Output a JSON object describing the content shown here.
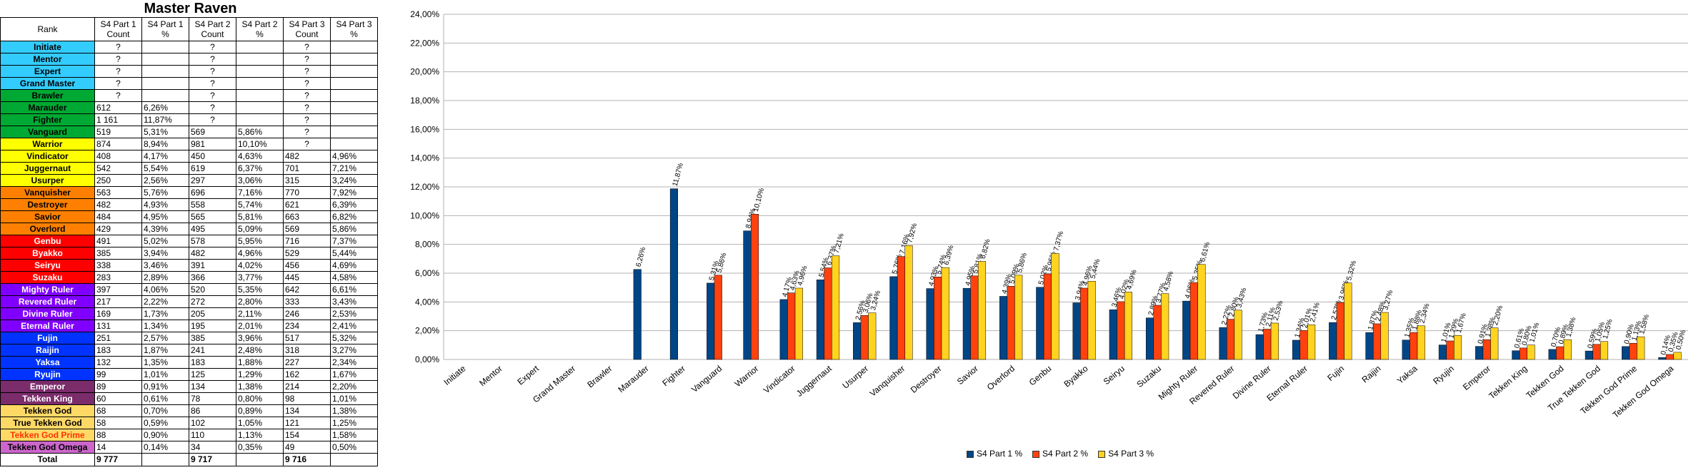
{
  "sheet": {
    "title": "Master Raven",
    "headers": [
      "Rank",
      "S4 Part 1 Count",
      "S4 Part 1 %",
      "S4 Part 2 Count",
      "S4 Part 2 %",
      "S4 Part 3 Count",
      "S4 Part 3 %"
    ],
    "rows": [
      {
        "rank": "Initiate",
        "bg": "#33ccff",
        "fg": "#000000",
        "c1": "?",
        "p1": "",
        "c2": "?",
        "p2": "",
        "c3": "?",
        "p3": ""
      },
      {
        "rank": "Mentor",
        "bg": "#33ccff",
        "fg": "#000000",
        "c1": "?",
        "p1": "",
        "c2": "?",
        "p2": "",
        "c3": "?",
        "p3": ""
      },
      {
        "rank": "Expert",
        "bg": "#33ccff",
        "fg": "#000000",
        "c1": "?",
        "p1": "",
        "c2": "?",
        "p2": "",
        "c3": "?",
        "p3": ""
      },
      {
        "rank": "Grand Master",
        "bg": "#33ccff",
        "fg": "#000000",
        "c1": "?",
        "p1": "",
        "c2": "?",
        "p2": "",
        "c3": "?",
        "p3": ""
      },
      {
        "rank": "Brawler",
        "bg": "#00a933",
        "fg": "#000000",
        "c1": "?",
        "p1": "",
        "c2": "?",
        "p2": "",
        "c3": "?",
        "p3": ""
      },
      {
        "rank": "Marauder",
        "bg": "#00a933",
        "fg": "#000000",
        "c1": "612",
        "p1": "6,26%",
        "c2": "?",
        "p2": "",
        "c3": "?",
        "p3": ""
      },
      {
        "rank": "Fighter",
        "bg": "#00a933",
        "fg": "#000000",
        "c1": "1 161",
        "p1": "11,87%",
        "c2": "?",
        "p2": "",
        "c3": "?",
        "p3": ""
      },
      {
        "rank": "Vanguard",
        "bg": "#00a933",
        "fg": "#000000",
        "c1": "519",
        "p1": "5,31%",
        "c2": "569",
        "p2": "5,86%",
        "c3": "?",
        "p3": ""
      },
      {
        "rank": "Warrior",
        "bg": "#ffff00",
        "fg": "#000000",
        "c1": "874",
        "p1": "8,94%",
        "c2": "981",
        "p2": "10,10%",
        "c3": "?",
        "p3": ""
      },
      {
        "rank": "Vindicator",
        "bg": "#ffff00",
        "fg": "#000000",
        "c1": "408",
        "p1": "4,17%",
        "c2": "450",
        "p2": "4,63%",
        "c3": "482",
        "p3": "4,96%"
      },
      {
        "rank": "Juggernaut",
        "bg": "#ffff00",
        "fg": "#000000",
        "c1": "542",
        "p1": "5,54%",
        "c2": "619",
        "p2": "6,37%",
        "c3": "701",
        "p3": "7,21%"
      },
      {
        "rank": "Usurper",
        "bg": "#ffff00",
        "fg": "#000000",
        "c1": "250",
        "p1": "2,56%",
        "c2": "297",
        "p2": "3,06%",
        "c3": "315",
        "p3": "3,24%"
      },
      {
        "rank": "Vanquisher",
        "bg": "#ff8000",
        "fg": "#000000",
        "c1": "563",
        "p1": "5,76%",
        "c2": "696",
        "p2": "7,16%",
        "c3": "770",
        "p3": "7,92%"
      },
      {
        "rank": "Destroyer",
        "bg": "#ff8000",
        "fg": "#000000",
        "c1": "482",
        "p1": "4,93%",
        "c2": "558",
        "p2": "5,74%",
        "c3": "621",
        "p3": "6,39%"
      },
      {
        "rank": "Savior",
        "bg": "#ff8000",
        "fg": "#000000",
        "c1": "484",
        "p1": "4,95%",
        "c2": "565",
        "p2": "5,81%",
        "c3": "663",
        "p3": "6,82%"
      },
      {
        "rank": "Overlord",
        "bg": "#ff8000",
        "fg": "#000000",
        "c1": "429",
        "p1": "4,39%",
        "c2": "495",
        "p2": "5,09%",
        "c3": "569",
        "p3": "5,86%"
      },
      {
        "rank": "Genbu",
        "bg": "#ff0000",
        "fg": "#ffffff",
        "c1": "491",
        "p1": "5,02%",
        "c2": "578",
        "p2": "5,95%",
        "c3": "716",
        "p3": "7,37%"
      },
      {
        "rank": "Byakko",
        "bg": "#ff0000",
        "fg": "#ffffff",
        "c1": "385",
        "p1": "3,94%",
        "c2": "482",
        "p2": "4,96%",
        "c3": "529",
        "p3": "5,44%"
      },
      {
        "rank": "Seiryu",
        "bg": "#ff0000",
        "fg": "#ffffff",
        "c1": "338",
        "p1": "3,46%",
        "c2": "391",
        "p2": "4,02%",
        "c3": "456",
        "p3": "4,69%"
      },
      {
        "rank": "Suzaku",
        "bg": "#ff0000",
        "fg": "#ffffff",
        "c1": "283",
        "p1": "2,89%",
        "c2": "366",
        "p2": "3,77%",
        "c3": "445",
        "p3": "4,58%"
      },
      {
        "rank": "Mighty Ruler",
        "bg": "#8000ff",
        "fg": "#ffffff",
        "c1": "397",
        "p1": "4,06%",
        "c2": "520",
        "p2": "5,35%",
        "c3": "642",
        "p3": "6,61%"
      },
      {
        "rank": "Revered Ruler",
        "bg": "#8000ff",
        "fg": "#ffffff",
        "c1": "217",
        "p1": "2,22%",
        "c2": "272",
        "p2": "2,80%",
        "c3": "333",
        "p3": "3,43%"
      },
      {
        "rank": "Divine Ruler",
        "bg": "#8000ff",
        "fg": "#ffffff",
        "c1": "169",
        "p1": "1,73%",
        "c2": "205",
        "p2": "2,11%",
        "c3": "246",
        "p3": "2,53%"
      },
      {
        "rank": "Eternal Ruler",
        "bg": "#8000ff",
        "fg": "#ffffff",
        "c1": "131",
        "p1": "1,34%",
        "c2": "195",
        "p2": "2,01%",
        "c3": "234",
        "p3": "2,41%"
      },
      {
        "rank": "Fujin",
        "bg": "#0033ff",
        "fg": "#ffffff",
        "c1": "251",
        "p1": "2,57%",
        "c2": "385",
        "p2": "3,96%",
        "c3": "517",
        "p3": "5,32%"
      },
      {
        "rank": "Raijin",
        "bg": "#0033ff",
        "fg": "#ffffff",
        "c1": "183",
        "p1": "1,87%",
        "c2": "241",
        "p2": "2,48%",
        "c3": "318",
        "p3": "3,27%"
      },
      {
        "rank": "Yaksa",
        "bg": "#0033ff",
        "fg": "#ffffff",
        "c1": "132",
        "p1": "1,35%",
        "c2": "183",
        "p2": "1,88%",
        "c3": "227",
        "p3": "2,34%"
      },
      {
        "rank": "Ryujin",
        "bg": "#0033ff",
        "fg": "#ffffff",
        "c1": "99",
        "p1": "1,01%",
        "c2": "125",
        "p2": "1,29%",
        "c3": "162",
        "p3": "1,67%"
      },
      {
        "rank": "Emperor",
        "bg": "#7b2c6b",
        "fg": "#ffffff",
        "c1": "89",
        "p1": "0,91%",
        "c2": "134",
        "p2": "1,38%",
        "c3": "214",
        "p3": "2,20%"
      },
      {
        "rank": "Tekken King",
        "bg": "#7b2c6b",
        "fg": "#ffffff",
        "c1": "60",
        "p1": "0,61%",
        "c2": "78",
        "p2": "0,80%",
        "c3": "98",
        "p3": "1,01%"
      },
      {
        "rank": "Tekken God",
        "bg": "#ffd966",
        "fg": "#000000",
        "c1": "68",
        "p1": "0,70%",
        "c2": "86",
        "p2": "0,89%",
        "c3": "134",
        "p3": "1,38%"
      },
      {
        "rank": "True Tekken God",
        "bg": "#ffd966",
        "fg": "#000000",
        "c1": "58",
        "p1": "0,59%",
        "c2": "102",
        "p2": "1,05%",
        "c3": "121",
        "p3": "1,25%"
      },
      {
        "rank": "Tekken God Prime",
        "bg": "#ffd966",
        "fg": "#ff3300",
        "c1": "88",
        "p1": "0,90%",
        "c2": "110",
        "p2": "1,13%",
        "c3": "154",
        "p3": "1,58%"
      },
      {
        "rank": "Tekken God Omega",
        "bg": "#cc66cc",
        "fg": "#000000",
        "c1": "14",
        "p1": "0,14%",
        "c2": "34",
        "p2": "0,35%",
        "c3": "49",
        "p3": "0,50%"
      }
    ],
    "total": {
      "rank": "Total",
      "c1": "9 777",
      "p1": "",
      "c2": "9 717",
      "p2": "",
      "c3": "9 716",
      "p3": ""
    }
  },
  "chart_data": {
    "type": "bar",
    "categories": [
      "Initiate",
      "Mentor",
      "Expert",
      "Grand Master",
      "Brawler",
      "Marauder",
      "Fighter",
      "Vanguard",
      "Warrior",
      "Vindicator",
      "Juggernaut",
      "Usurper",
      "Vanquisher",
      "Destroyer",
      "Savior",
      "Overlord",
      "Genbu",
      "Byakko",
      "Seiryu",
      "Suzaku",
      "Mighty Ruler",
      "Revered Ruler",
      "Divine Ruler",
      "Eternal Ruler",
      "Fujin",
      "Raijin",
      "Yaksa",
      "Ryujin",
      "Emperor",
      "Tekken King",
      "Tekken God",
      "True Tekken God",
      "Tekken God Prime",
      "Tekken God Omega"
    ],
    "series": [
      {
        "name": "S4 Part 1 %",
        "color": "#004586",
        "values": [
          null,
          null,
          null,
          null,
          null,
          6.26,
          11.87,
          5.31,
          8.94,
          4.17,
          5.54,
          2.56,
          5.76,
          4.93,
          4.95,
          4.39,
          5.02,
          3.94,
          3.46,
          2.89,
          4.06,
          2.22,
          1.73,
          1.34,
          2.57,
          1.87,
          1.35,
          1.01,
          0.91,
          0.61,
          0.7,
          0.59,
          0.9,
          0.14
        ]
      },
      {
        "name": "S4 Part 2 %",
        "color": "#ff420e",
        "values": [
          null,
          null,
          null,
          null,
          null,
          null,
          null,
          5.86,
          10.1,
          4.63,
          6.37,
          3.06,
          7.16,
          5.74,
          5.81,
          5.09,
          5.95,
          4.96,
          4.02,
          3.77,
          5.35,
          2.8,
          2.11,
          2.01,
          3.96,
          2.48,
          1.88,
          1.29,
          1.38,
          0.8,
          0.89,
          1.05,
          1.13,
          0.35
        ]
      },
      {
        "name": "S4 Part 3 %",
        "color": "#ffd320",
        "values": [
          null,
          null,
          null,
          null,
          null,
          null,
          null,
          null,
          null,
          4.96,
          7.21,
          3.24,
          7.92,
          6.39,
          6.82,
          5.86,
          7.37,
          5.44,
          4.69,
          4.58,
          6.61,
          3.43,
          2.53,
          2.41,
          5.32,
          3.27,
          2.34,
          1.67,
          2.2,
          1.01,
          1.38,
          1.25,
          1.58,
          0.5
        ]
      }
    ],
    "ylim": [
      0,
      24
    ],
    "yticks": [
      0,
      2,
      4,
      6,
      8,
      10,
      12,
      14,
      16,
      18,
      20,
      22,
      24
    ],
    "ytick_labels": [
      "0,00%",
      "2,00%",
      "4,00%",
      "6,00%",
      "8,00%",
      "10,00%",
      "12,00%",
      "14,00%",
      "16,00%",
      "18,00%",
      "20,00%",
      "22,00%",
      "24,00%"
    ],
    "grid": true,
    "legend": "bottom",
    "title": "",
    "xlabel": "",
    "ylabel": ""
  }
}
